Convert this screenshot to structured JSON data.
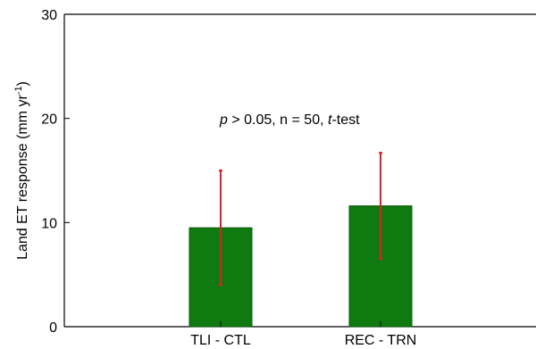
{
  "chart_data": {
    "type": "bar",
    "categories": [
      "TLI - CTL",
      "REC - TRN"
    ],
    "values": [
      9.5,
      11.6
    ],
    "error_low": [
      4.0,
      6.5
    ],
    "error_high": [
      15.0,
      16.7
    ],
    "ylabel": "Land ET response (mm yr",
    "ylabel_superscript": "-1",
    "ylabel_close": ")",
    "ylim": [
      0,
      30
    ],
    "yticks": [
      "0",
      "10",
      "20",
      "30"
    ],
    "annotation": {
      "p": "p",
      "p_rest": " > 0.05, n = 50, ",
      "t": "t",
      "t_rest": "-test"
    },
    "grid": false,
    "colors": {
      "bar": "#0f7a0f",
      "error": "#e02020"
    }
  }
}
